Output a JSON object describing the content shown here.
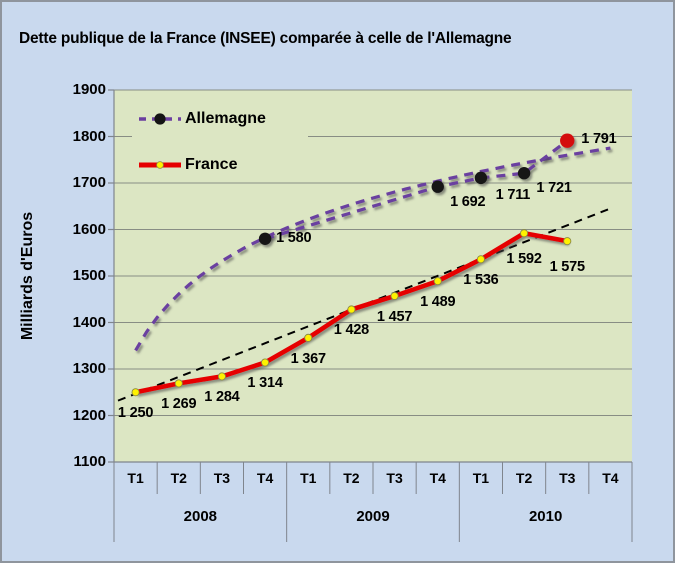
{
  "title": "Dette publique de la France (INSEE) comparée à celle de l'Allemagne",
  "chart_data": {
    "type": "line",
    "title": "Dette publique de la France (INSEE) comparée à celle de l'Allemagne",
    "ylabel": "Milliards d'Euros",
    "ylim": [
      1100,
      1900
    ],
    "ytick_step": 100,
    "ytick_labels": [
      "1900",
      "1800",
      "1700",
      "1600",
      "1500",
      "1400",
      "1300",
      "1200",
      "1100"
    ],
    "x_quarter_labels": [
      "T1",
      "T2",
      "T3",
      "T4",
      "T1",
      "T2",
      "T3",
      "T4",
      "T1",
      "T2",
      "T3",
      "T4"
    ],
    "x_year_labels": [
      "2008",
      "2009",
      "2010"
    ],
    "grid": true,
    "legend_position": "top-left",
    "series": [
      {
        "name": "Allemagne",
        "color": "#6b3fa0",
        "line_style": "dashed",
        "marker": "black-dot",
        "highlight_color": "#d40f0f",
        "points": [
          {
            "category_index": 3,
            "quarter": "T4 2008",
            "value": 1580,
            "label": "1 580",
            "highlight": false
          },
          {
            "category_index": 7,
            "quarter": "T4 2009",
            "value": 1692,
            "label": "1 692",
            "highlight": false
          },
          {
            "category_index": 8,
            "quarter": "T1 2010",
            "value": 1711,
            "label": "1 711",
            "highlight": false
          },
          {
            "category_index": 9,
            "quarter": "T2 2010",
            "value": 1721,
            "label": "1 721",
            "highlight": false
          },
          {
            "category_index": 10,
            "quarter": "T3 2010",
            "value": 1791,
            "label": "1 791",
            "highlight": true
          }
        ],
        "trendline": {
          "shape": "logarithmic",
          "style": "dashed",
          "color": "#6b3fa0",
          "start_value": 1340,
          "end_value": 1775
        }
      },
      {
        "name": "France",
        "color": "#e60000",
        "line_style": "solid",
        "marker": "yellow-dot",
        "values": [
          1250,
          1269,
          1284,
          1314,
          1367,
          1428,
          1457,
          1489,
          1536,
          1592,
          1575
        ],
        "labels": [
          "1 250",
          "1 269",
          "1 284",
          "1 314",
          "1 367",
          "1 428",
          "1 457",
          "1 489",
          "1 536",
          "1 592",
          "1 575"
        ],
        "trendline": {
          "shape": "linear",
          "style": "dashed",
          "color": "#000000",
          "start_value": 1232,
          "end_value": 1644
        }
      }
    ]
  },
  "colors": {
    "background": "#c9d9ee",
    "plot_background": "#dce6c3",
    "gridline": "#888d84",
    "axis_line": "#7f858d",
    "allemagne_purple": "#6b3fa0",
    "france_red": "#e60000",
    "highlight_dot_red": "#d40f0f",
    "marker_yellow": "#fff200",
    "marker_black": "#141414",
    "text": "#000000"
  }
}
